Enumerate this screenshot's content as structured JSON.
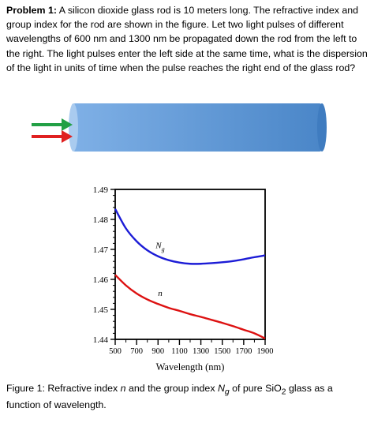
{
  "problem": {
    "label": "Problem 1:",
    "text": " A silicon dioxide glass rod is 10 meters long. The refractive index and group index for the rod are shown in the figure. Let two light pulses of different wavelengths of 600 nm and 1300 nm be propagated down the rod from the left to the right. The light pulses enter the left side at the same time, what is the dispersion of the light in units of time when the pulse reaches the right end of the glass rod?"
  },
  "colors": {
    "rod_light": "#7fb0e6",
    "rod_dark": "#4a86c8",
    "arrow_green": "#22a045",
    "arrow_red": "#e02020",
    "ng_curve": "#1c1cd6",
    "n_curve": "#dd1111"
  },
  "chart_data": {
    "type": "line",
    "xlabel": "Wavelength (nm)",
    "xlim": [
      500,
      1900
    ],
    "ylim": [
      1.44,
      1.49
    ],
    "xticks": [
      500,
      700,
      900,
      1100,
      1300,
      1500,
      1700,
      1900
    ],
    "yticks": [
      1.44,
      1.45,
      1.46,
      1.47,
      1.48,
      1.49
    ],
    "xtick_labels": [
      "500",
      "700",
      "900",
      "1100",
      "1300",
      "1500",
      "1700",
      "1900"
    ],
    "ytick_labels": [
      "1.44",
      "1.45",
      "1.46",
      "1.47",
      "1.48",
      "1.49"
    ],
    "series": [
      {
        "name": "Ng",
        "color": "#1c1cd6",
        "x": [
          500,
          600,
          700,
          800,
          900,
          1000,
          1100,
          1200,
          1300,
          1400,
          1500,
          1600,
          1700,
          1800,
          1900
        ],
        "y": [
          1.4835,
          1.477,
          1.4727,
          1.4697,
          1.4677,
          1.4664,
          1.4656,
          1.4652,
          1.4652,
          1.4654,
          1.4657,
          1.4661,
          1.4667,
          1.4674,
          1.468
        ]
      },
      {
        "name": "n",
        "color": "#dd1111",
        "x": [
          500,
          600,
          700,
          800,
          900,
          1000,
          1100,
          1200,
          1300,
          1400,
          1500,
          1600,
          1700,
          1800,
          1900
        ],
        "y": [
          1.4615,
          1.458,
          1.4553,
          1.4533,
          1.4518,
          1.4505,
          1.4495,
          1.4484,
          1.4475,
          1.4465,
          1.4455,
          1.4444,
          1.4432,
          1.442,
          1.4403
        ]
      }
    ],
    "annotations": [
      {
        "text": "N",
        "sub": "g",
        "series": "Ng"
      },
      {
        "text": "n",
        "series": "n"
      }
    ]
  },
  "caption": {
    "prefix": "Figure 1: Refractive index ",
    "n": "n",
    "mid": " and the group index ",
    "N": "N",
    "g": "g",
    "mid2": " of pure SiO",
    "sub2": "2",
    "suffix": " glass as a function of wavelength."
  }
}
